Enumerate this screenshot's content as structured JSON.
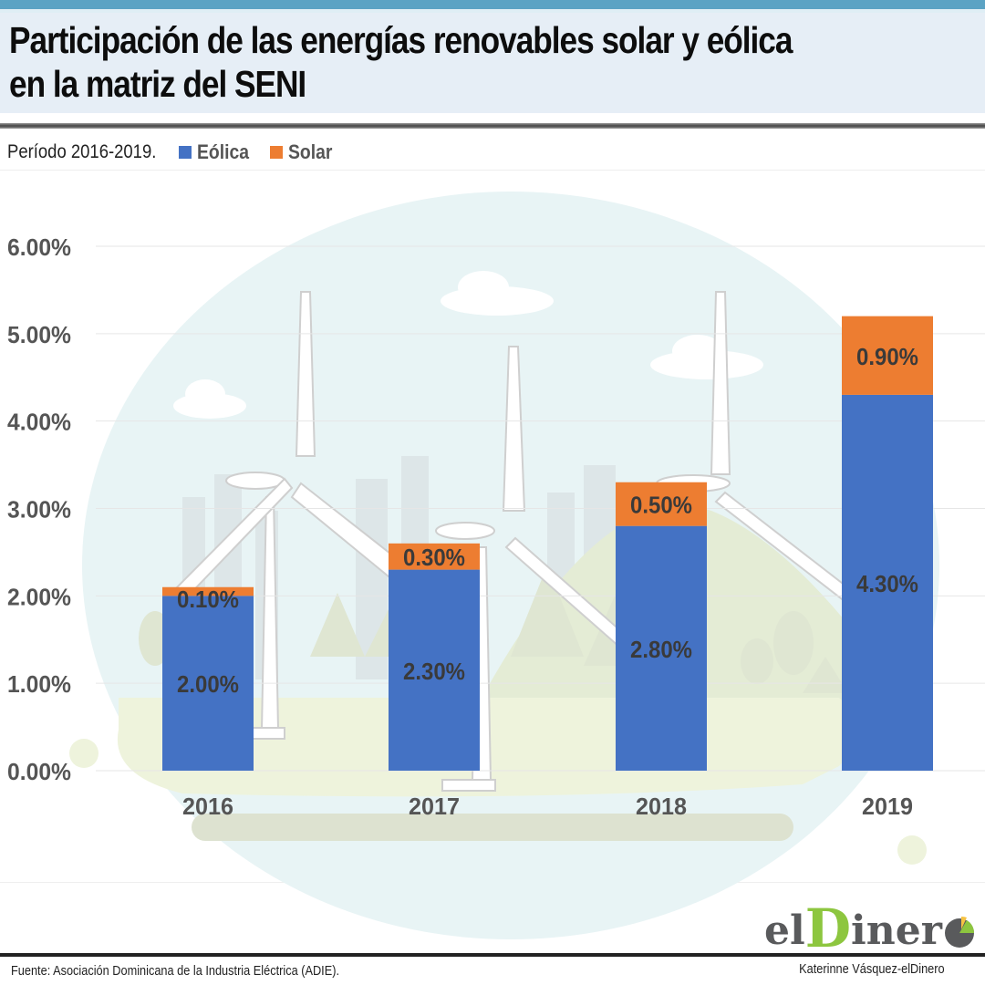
{
  "header": {
    "title_line1": "Participación de las energías renovables solar y eólica",
    "title_line2": "en la matriz del SENI"
  },
  "subtitle": "Período 2016-2019.",
  "legend": [
    {
      "label": "Eólica",
      "color": "#4472c4"
    },
    {
      "label": "Solar",
      "color": "#ed7d31"
    }
  ],
  "footer": {
    "source": "Fuente: Asociación Dominicana de la Industria Eléctrica (ADIE).",
    "credit": "Katerinne Vásquez-elDinero",
    "logo_prefix": "el",
    "logo_d": "D",
    "logo_rest": "iner"
  },
  "chart_data": {
    "type": "bar",
    "stacked": true,
    "title": "Participación de las energías renovables solar y eólica en la matriz del SENI",
    "subtitle": "Período 2016-2019.",
    "xlabel": "",
    "ylabel": "",
    "categories": [
      "2016",
      "2017",
      "2018",
      "2019"
    ],
    "series": [
      {
        "name": "Eólica",
        "color": "#4472c4",
        "values": [
          2.0,
          2.3,
          2.8,
          4.3
        ],
        "labels": [
          "2.00%",
          "2.30%",
          "2.80%",
          "4.30%"
        ]
      },
      {
        "name": "Solar",
        "color": "#ed7d31",
        "values": [
          0.1,
          0.3,
          0.5,
          0.9
        ],
        "labels": [
          "0.10%",
          "0.30%",
          "0.50%",
          "0.90%"
        ]
      }
    ],
    "ylim": [
      0,
      6
    ],
    "yticks": [
      0,
      1,
      2,
      3,
      4,
      5,
      6
    ],
    "ytick_labels": [
      "0.00%",
      "1.00%",
      "2.00%",
      "3.00%",
      "4.00%",
      "5.00%",
      "6.00%"
    ],
    "grid": true,
    "legend_position": "top-left"
  }
}
